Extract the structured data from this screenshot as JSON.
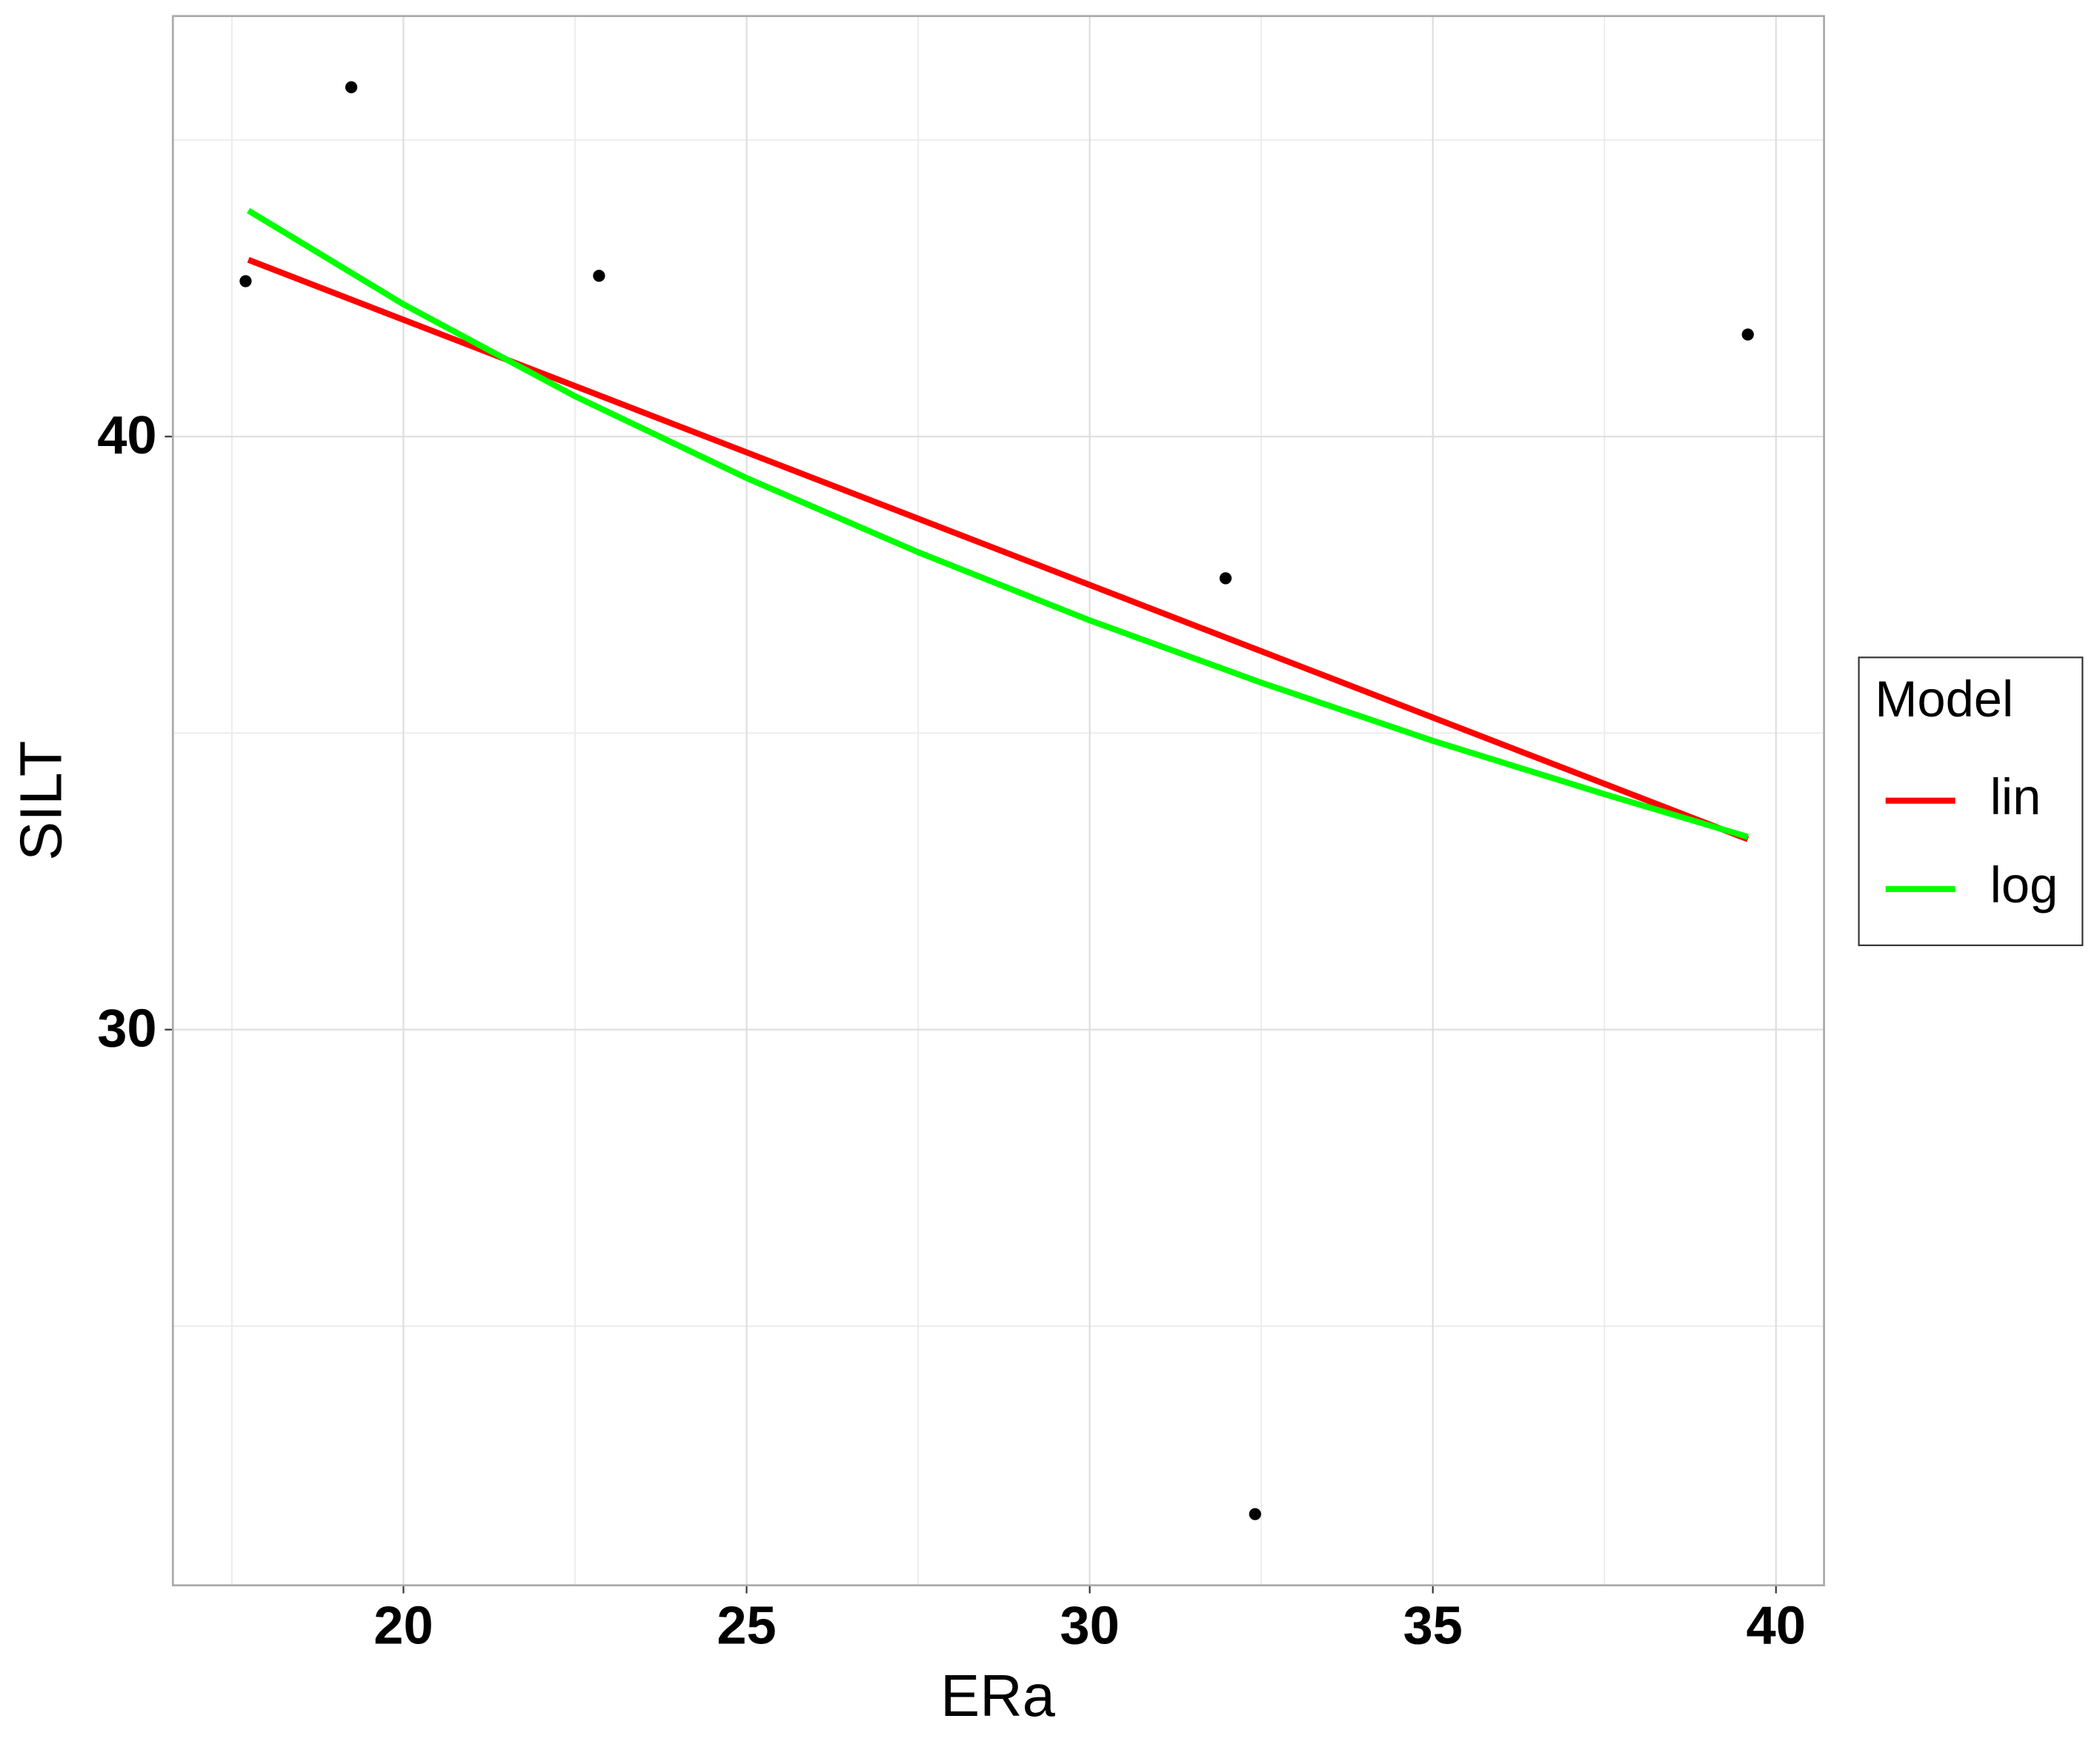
{
  "chart_data": {
    "type": "scatter",
    "x_label": "ERa",
    "y_label": "SILT",
    "xlim": [
      16.64,
      40.7
    ],
    "ylim": [
      20.63,
      47.09
    ],
    "xticks": [
      20,
      25,
      30,
      35,
      40
    ],
    "yticks": [
      30,
      40
    ],
    "grid": true,
    "points": {
      "color": "#000000",
      "x": [
        17.7,
        19.24,
        22.85,
        31.98,
        32.41,
        39.59
      ],
      "values": [
        42.62,
        45.89,
        42.71,
        37.61,
        21.83,
        41.72
      ]
    },
    "legend_title": "Model",
    "legend_position": "right",
    "series": [
      {
        "name": "lin",
        "color": "#ff0000",
        "x": [
          17.74,
          39.59
        ],
        "values": [
          42.98,
          33.21
        ]
      },
      {
        "name": "log",
        "color": "#00ff00",
        "x": [
          17.74,
          20,
          22.5,
          25,
          27.5,
          30,
          32.5,
          35,
          37.5,
          39.59
        ],
        "values": [
          43.81,
          42.23,
          40.68,
          39.3,
          38.05,
          36.9,
          35.85,
          34.87,
          33.97,
          33.25
        ]
      }
    ]
  }
}
